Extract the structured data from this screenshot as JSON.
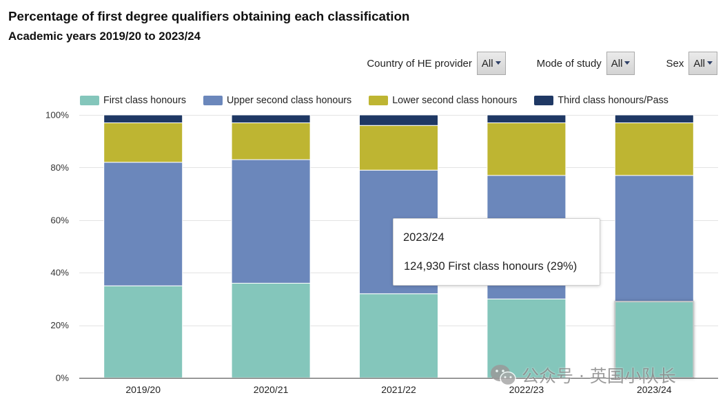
{
  "chart_data": {
    "type": "bar",
    "stacked": true,
    "title": "Percentage of first degree qualifiers obtaining each classification",
    "subtitle": "Academic years 2019/20 to 2023/24",
    "categories": [
      "2019/20",
      "2020/21",
      "2021/22",
      "2022/23",
      "2023/24"
    ],
    "series": [
      {
        "name": "First class honours",
        "color": "#84c6bb",
        "values": [
          35,
          36,
          32,
          30,
          29
        ]
      },
      {
        "name": "Upper second class honours",
        "color": "#6b87bb",
        "values": [
          47,
          47,
          47,
          47,
          48
        ]
      },
      {
        "name": "Lower second class honours",
        "color": "#beb532",
        "values": [
          15,
          14,
          17,
          20,
          20
        ]
      },
      {
        "name": "Third class honours/Pass",
        "color": "#1f3864",
        "values": [
          3,
          3,
          4,
          3,
          3
        ]
      }
    ],
    "ylim": [
      0,
      100
    ],
    "yticks": [
      0,
      20,
      40,
      60,
      80,
      100
    ],
    "ytick_labels": [
      "0%",
      "20%",
      "40%",
      "60%",
      "80%",
      "100%"
    ],
    "grid": true,
    "legend": "top"
  },
  "filters": [
    {
      "label": "Country of HE provider",
      "value": "All",
      "icon": "dropdown-arrow-icon"
    },
    {
      "label": "Mode of study",
      "value": "All",
      "icon": "dropdown-arrow-icon"
    },
    {
      "label": "Sex",
      "value": "All",
      "icon": "dropdown-arrow-icon"
    }
  ],
  "tooltip": {
    "title": "2023/24",
    "text": "124,930 First class honours (29%)",
    "category_index": 4,
    "series_index": 0
  },
  "watermark": {
    "icon": "wechat-icon",
    "text": "公众号 · 英国小队长"
  }
}
